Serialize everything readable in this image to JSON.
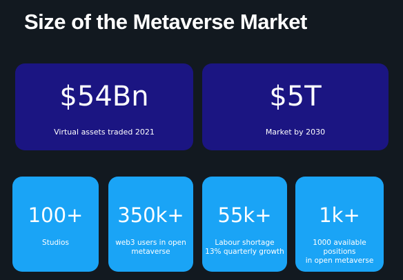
{
  "header": {
    "title": "Size of the Metaverse Market"
  },
  "big_stats": [
    {
      "value": "$54Bn",
      "label_lines": [
        "Virtual assets traded 2021"
      ]
    },
    {
      "value": "$5T",
      "label_lines": [
        "Market by 2030"
      ]
    }
  ],
  "small_stats": [
    {
      "value": "100+",
      "label_lines": [
        "Studios"
      ]
    },
    {
      "value": "350k+",
      "label_lines": [
        "web3 users in open",
        "metaverse"
      ]
    },
    {
      "value": "55k+",
      "label_lines": [
        "Labour shortage",
        "13% quarterly growth"
      ]
    },
    {
      "value": "1k+",
      "label_lines": [
        "1000 available positions",
        "in open metaverse"
      ]
    }
  ]
}
